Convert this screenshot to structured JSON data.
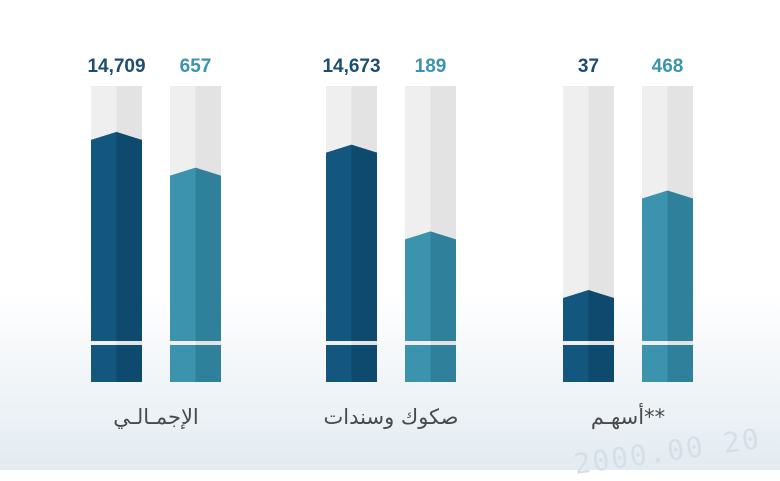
{
  "chart_data": {
    "type": "bar",
    "title": "",
    "xlabel": "",
    "ylabel": "",
    "categories": [
      "الإجمـالـي",
      "صكوك وسندات",
      "**أسهـم"
    ],
    "series": [
      {
        "values": [
          14709,
          14673,
          37
        ],
        "labels": [
          "14,709",
          "14,673",
          "37"
        ],
        "color": "#14577e"
      },
      {
        "values": [
          657,
          189,
          468
        ],
        "labels": [
          "657",
          "189",
          "468"
        ],
        "color": "#3b93ad"
      }
    ],
    "visual_fill": [
      [
        0.82,
        0.77,
        0.2
      ],
      [
        0.68,
        0.43,
        0.59
      ]
    ],
    "legend": "none",
    "grid": false
  },
  "colors": {
    "dark": "#14577e",
    "dark_shade": "#0d4a6d",
    "light": "#3b93ad",
    "light_shade": "#2f819b",
    "track": "#efeff0",
    "track_shade": "#e3e3e4",
    "value_dark": "#1b4e70",
    "value_light": "#3b93ad"
  },
  "decor_text": "2000.00 20"
}
